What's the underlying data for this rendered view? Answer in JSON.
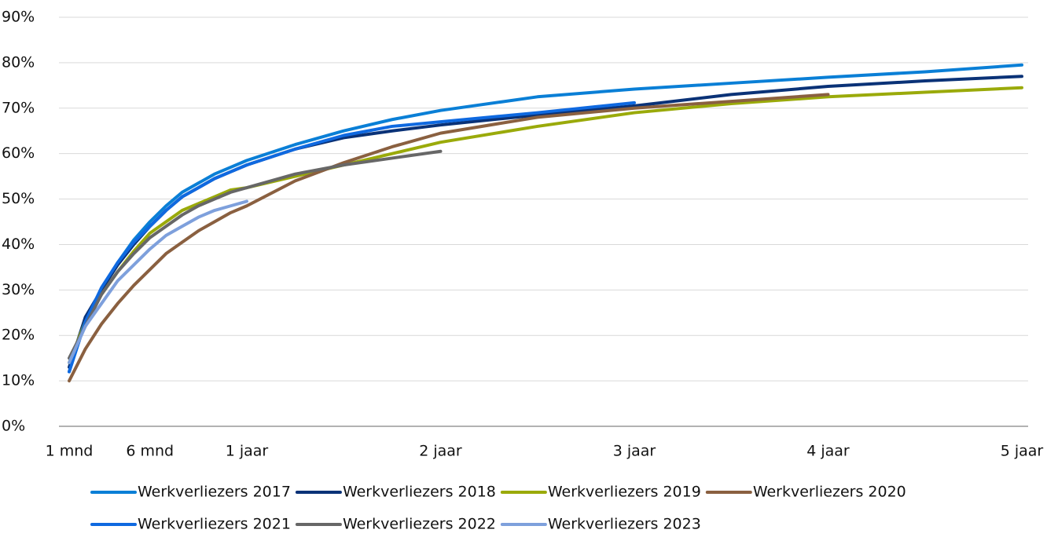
{
  "chart_data": {
    "type": "line",
    "x": [
      1,
      2,
      3,
      4,
      5,
      6,
      7,
      8,
      9,
      10,
      11,
      12,
      15,
      18,
      21,
      24,
      30,
      36,
      42,
      48,
      54,
      60
    ],
    "xlim": [
      1,
      60
    ],
    "xticks": [
      {
        "value": 1,
        "label": "1 mnd"
      },
      {
        "value": 6,
        "label": "6 mnd"
      },
      {
        "value": 12,
        "label": "1 jaar"
      },
      {
        "value": 24,
        "label": "2 jaar"
      },
      {
        "value": 36,
        "label": "3 jaar"
      },
      {
        "value": 48,
        "label": "4 jaar"
      },
      {
        "value": 60,
        "label": "5 jaar"
      }
    ],
    "ylim": [
      0,
      90
    ],
    "yticks": [
      {
        "value": 0,
        "label": "0%"
      },
      {
        "value": 10,
        "label": "10%"
      },
      {
        "value": 20,
        "label": "20%"
      },
      {
        "value": 30,
        "label": "30%"
      },
      {
        "value": 40,
        "label": "40%"
      },
      {
        "value": 50,
        "label": "50%"
      },
      {
        "value": 60,
        "label": "60%"
      },
      {
        "value": 70,
        "label": "70%"
      },
      {
        "value": 80,
        "label": "80%"
      },
      {
        "value": 90,
        "label": "90%"
      }
    ],
    "grid": true,
    "legend": "bottom",
    "series": [
      {
        "name": "Werkverliezers 2017",
        "color": "#0a7fd6",
        "values": [
          12,
          23,
          30,
          36,
          41,
          45,
          48.5,
          51.5,
          53.5,
          55.5,
          57,
          58.5,
          62,
          65,
          67.5,
          69.5,
          72.5,
          74.2,
          75.5,
          76.8,
          78,
          79.5
        ]
      },
      {
        "name": "Werkverliezers 2018",
        "color": "#0a3277",
        "values": [
          13,
          24,
          30,
          35.5,
          40,
          44,
          47.5,
          50.5,
          52.5,
          54.5,
          56,
          57.5,
          61,
          63.5,
          65,
          66.3,
          68.5,
          70.5,
          73,
          74.8,
          76,
          77
        ]
      },
      {
        "name": "Werkverliezers 2019",
        "color": "#9aaa0a",
        "values": [
          14,
          23,
          29,
          34,
          38.5,
          42.5,
          45,
          47.5,
          49,
          50.5,
          52,
          52.5,
          55,
          57.5,
          60,
          62.5,
          66,
          69,
          71,
          72.5,
          73.5,
          74.5
        ]
      },
      {
        "name": "Werkverliezers 2020",
        "color": "#8a6040",
        "values": [
          10,
          17,
          22.5,
          27,
          31,
          34.5,
          38,
          40.5,
          43,
          45,
          47,
          48.5,
          54,
          58,
          61.5,
          64.5,
          68,
          70,
          71.5,
          73,
          null,
          null
        ]
      },
      {
        "name": "Werkverliezers 2021",
        "color": "#0f69e0",
        "values": [
          12,
          23,
          30.5,
          36,
          40.5,
          44,
          47.5,
          50.5,
          52.5,
          54.5,
          56,
          57.5,
          61,
          64,
          66,
          67,
          69,
          71.2,
          null,
          null,
          null,
          null
        ]
      },
      {
        "name": "Werkverliezers 2022",
        "color": "#676767",
        "values": [
          15,
          22,
          29,
          34,
          38,
          41.5,
          44,
          46.5,
          48.5,
          50,
          51.5,
          52.5,
          55.5,
          57.5,
          59,
          60.5,
          null,
          null,
          null,
          null,
          null,
          null
        ]
      },
      {
        "name": "Werkverliezers 2023",
        "color": "#7ea0dc",
        "values": [
          14,
          22,
          27,
          32,
          35.5,
          39,
          42,
          44,
          46,
          47.5,
          48.5,
          49.5,
          null,
          null,
          null,
          null,
          null,
          null,
          null,
          null,
          null,
          null
        ]
      }
    ]
  }
}
